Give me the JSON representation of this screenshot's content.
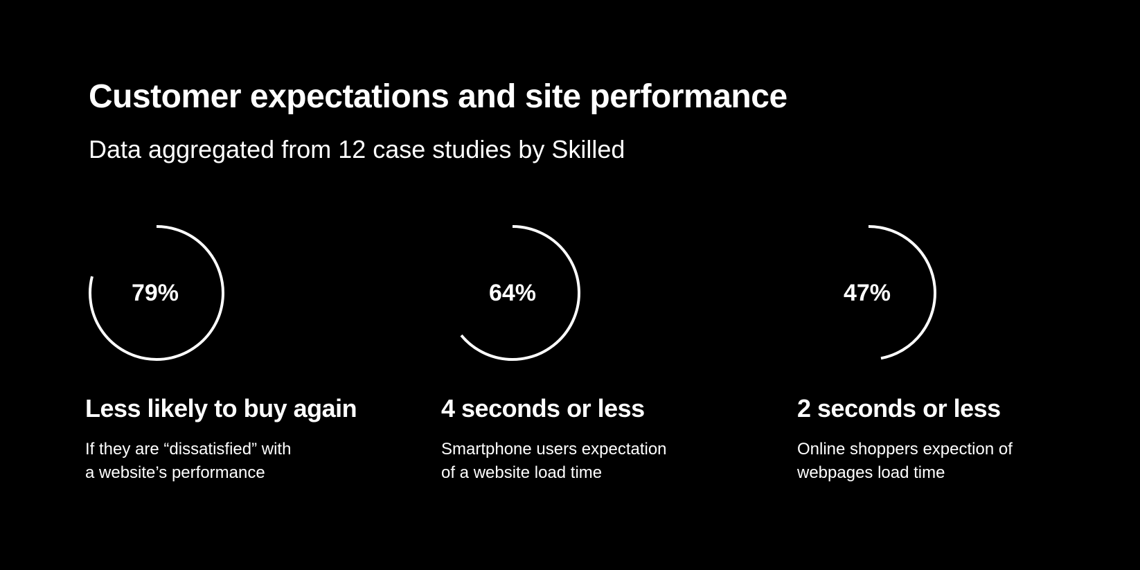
{
  "header": {
    "title": "Customer expectations and site performance",
    "subtitle": "Data aggregated from 12 case studies by Skilled"
  },
  "stats": [
    {
      "percent_label": "79%",
      "heading": "Less likely to buy again",
      "description_lines": [
        "If they are “dissatisfied” with",
        "a website’s performance"
      ]
    },
    {
      "percent_label": "64%",
      "heading": "4 seconds or less",
      "description_lines": [
        "Smartphone users expectation",
        "of a website load time"
      ]
    },
    {
      "percent_label": "47%",
      "heading": "2 seconds or less",
      "description_lines": [
        "Online shoppers expection of",
        "webpages load time"
      ]
    }
  ],
  "chart_data": {
    "type": "pie",
    "categories": [
      "Less likely to buy again",
      "4 seconds or less",
      "2 seconds or less"
    ],
    "values": [
      79,
      64,
      47
    ],
    "unit": "%",
    "max": 100
  },
  "colors": {
    "background": "#000000",
    "foreground": "#ffffff"
  }
}
